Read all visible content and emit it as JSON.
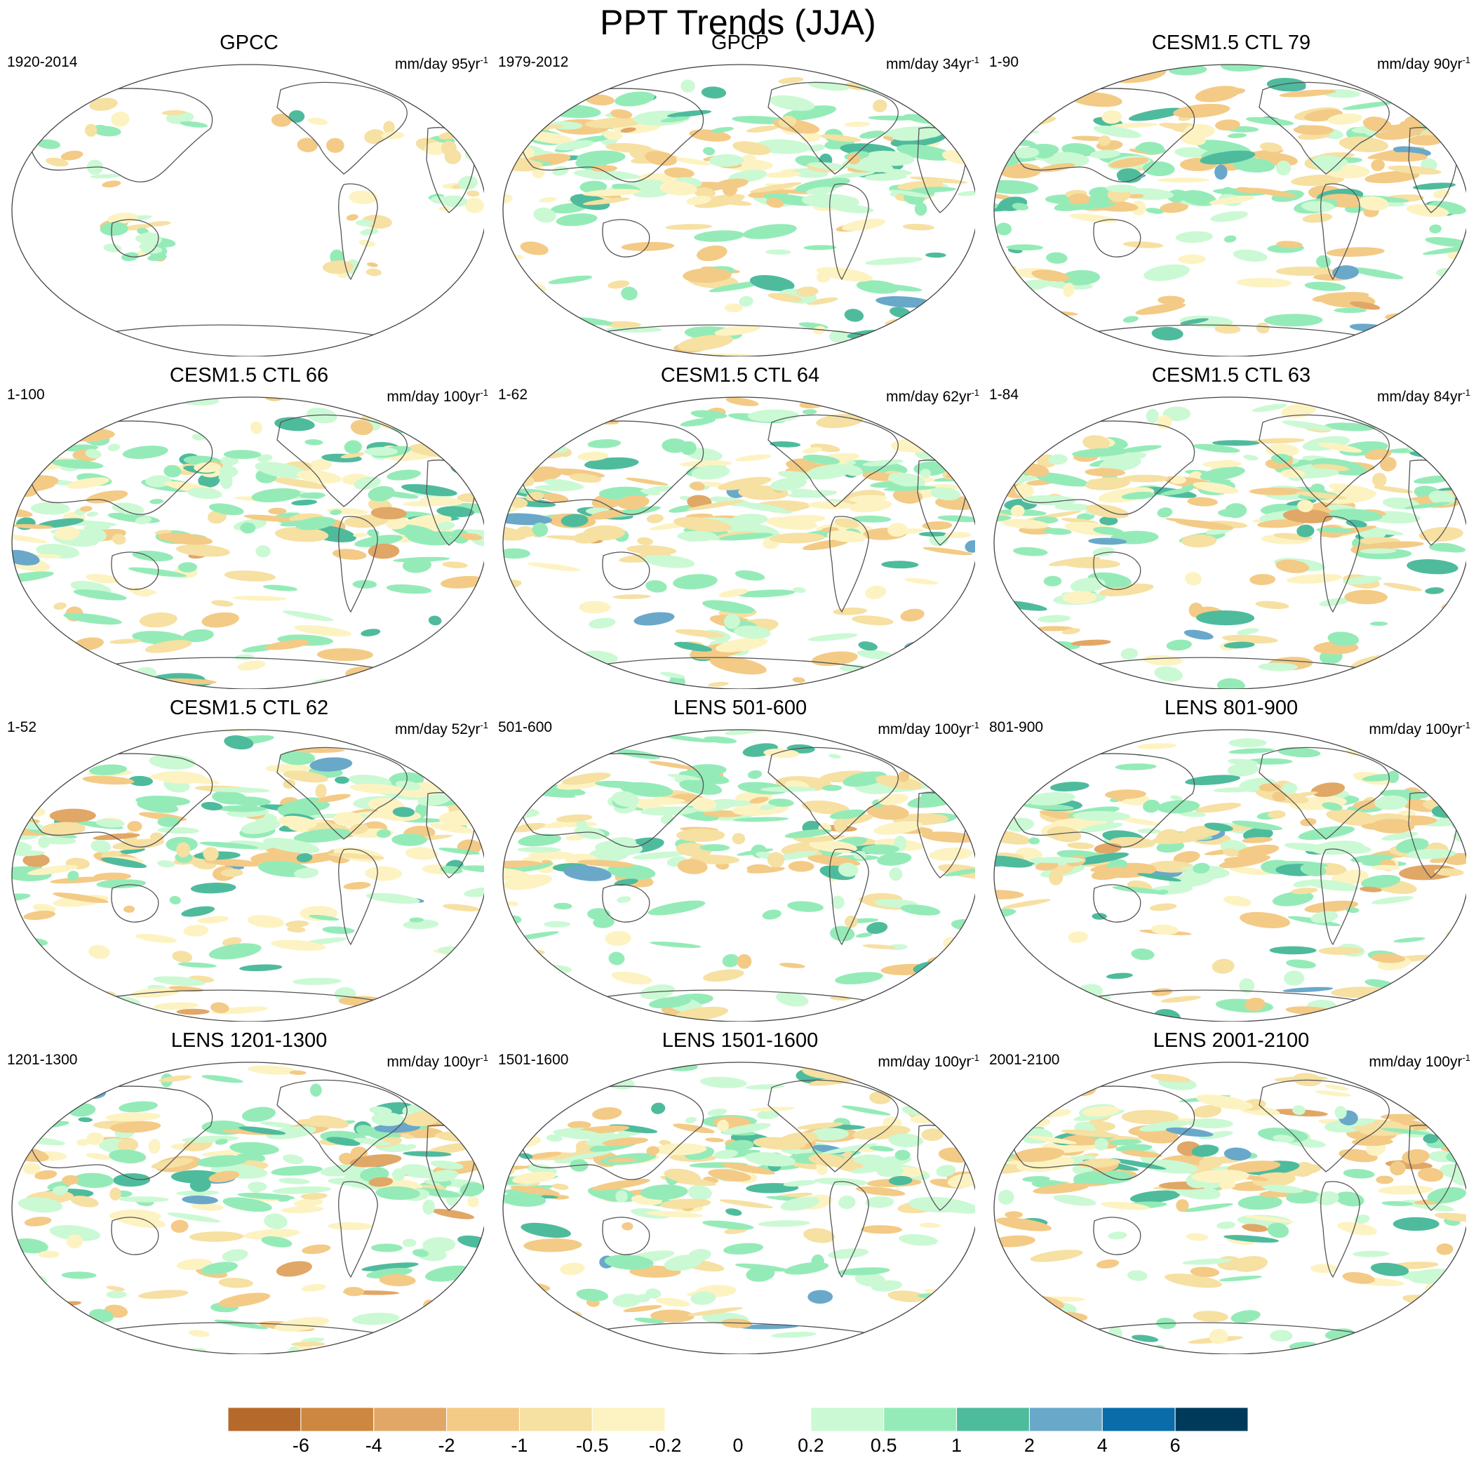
{
  "title": "PPT Trends (JJA)",
  "panels": [
    {
      "title": "GPCC",
      "period": "1920-2014",
      "units": "mm/day",
      "trend_length": "95",
      "trend_unit": "yr",
      "trend_exp": "-1",
      "coverage": "land"
    },
    {
      "title": "GPCP",
      "period": "1979-2012",
      "units": "mm/day",
      "trend_length": "34",
      "trend_unit": "yr",
      "trend_exp": "-1",
      "coverage": "global"
    },
    {
      "title": "CESM1.5 CTL 79",
      "period": "1-90",
      "units": "mm/day",
      "trend_length": "90",
      "trend_unit": "yr",
      "trend_exp": "-1",
      "coverage": "global"
    },
    {
      "title": "CESM1.5 CTL 66",
      "period": "1-100",
      "units": "mm/day",
      "trend_length": "100",
      "trend_unit": "yr",
      "trend_exp": "-1",
      "coverage": "global"
    },
    {
      "title": "CESM1.5 CTL 64",
      "period": "1-62",
      "units": "mm/day",
      "trend_length": "62",
      "trend_unit": "yr",
      "trend_exp": "-1",
      "coverage": "global"
    },
    {
      "title": "CESM1.5 CTL 63",
      "period": "1-84",
      "units": "mm/day",
      "trend_length": "84",
      "trend_unit": "yr",
      "trend_exp": "-1",
      "coverage": "global"
    },
    {
      "title": "CESM1.5 CTL 62",
      "period": "1-52",
      "units": "mm/day",
      "trend_length": "52",
      "trend_unit": "yr",
      "trend_exp": "-1",
      "coverage": "global"
    },
    {
      "title": "LENS 501-600",
      "period": "501-600",
      "units": "mm/day",
      "trend_length": "100",
      "trend_unit": "yr",
      "trend_exp": "-1",
      "coverage": "global"
    },
    {
      "title": "LENS 801-900",
      "period": "801-900",
      "units": "mm/day",
      "trend_length": "100",
      "trend_unit": "yr",
      "trend_exp": "-1",
      "coverage": "global"
    },
    {
      "title": "LENS 1201-1300",
      "period": "1201-1300",
      "units": "mm/day",
      "trend_length": "100",
      "trend_unit": "yr",
      "trend_exp": "-1",
      "coverage": "global"
    },
    {
      "title": "LENS 1501-1600",
      "period": "1501-1600",
      "units": "mm/day",
      "trend_length": "100",
      "trend_unit": "yr",
      "trend_exp": "-1",
      "coverage": "global"
    },
    {
      "title": "LENS 2001-2100",
      "period": "2001-2100",
      "units": "mm/day",
      "trend_length": "100",
      "trend_unit": "yr",
      "trend_exp": "-1",
      "coverage": "global"
    }
  ],
  "colorbar": {
    "colors": [
      "#b5692a",
      "#cd8740",
      "#e1a766",
      "#f3cb86",
      "#f6e0a2",
      "#fdf3c2",
      "#ffffff",
      "#ffffff",
      "#cbf9d4",
      "#95ebb8",
      "#4fbb9d",
      "#6aa8ca",
      "#0a6ca8",
      "#003a5b"
    ],
    "labels": [
      "-6",
      "-4",
      "-2",
      "-1",
      "-0.5",
      "-0.2",
      "0",
      "0.2",
      "0.5",
      "1",
      "2",
      "4",
      "6"
    ]
  }
}
